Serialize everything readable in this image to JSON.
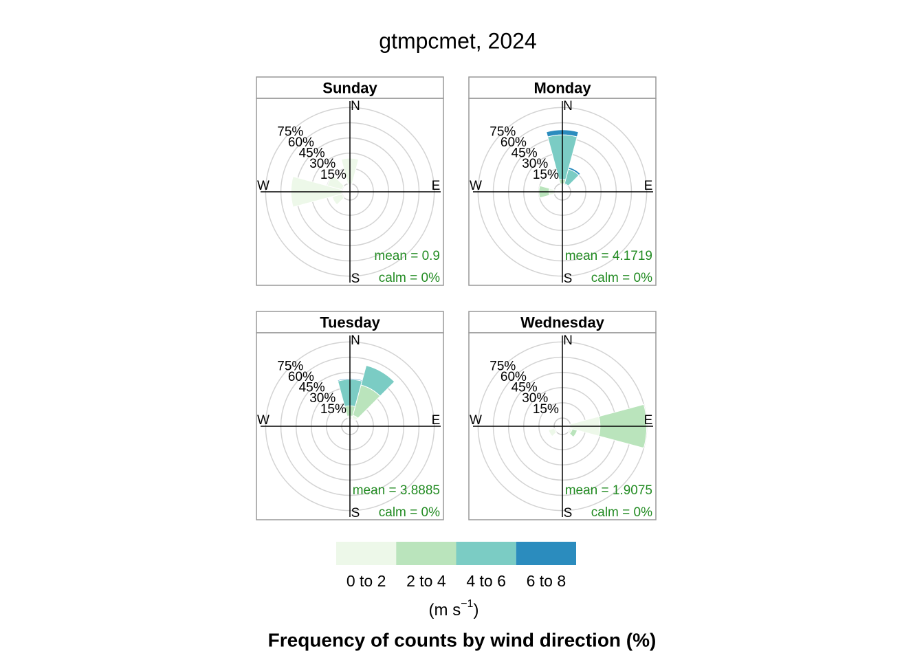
{
  "chart_data": {
    "type": "windrose",
    "title": "gtmpcmet, 2024",
    "caption": "Frequency of counts by wind direction (%)",
    "legend_unit": [
      "(m s",
      "−1",
      ")"
    ],
    "compass": [
      "N",
      "E",
      "S",
      "W"
    ],
    "directions": [
      0,
      30,
      60,
      90,
      120,
      150,
      180,
      210,
      240,
      270,
      300,
      330
    ],
    "rlim": [
      0,
      80
    ],
    "rticks": [
      {
        "value": 15,
        "label": "15%"
      },
      {
        "value": 30,
        "label": "30%"
      },
      {
        "value": 45,
        "label": "45%"
      },
      {
        "value": 60,
        "label": "60%"
      },
      {
        "value": 75,
        "label": "75%"
      }
    ],
    "series": [
      {
        "name": "0 to 2",
        "color": "#edf8e9"
      },
      {
        "name": "2 to 4",
        "color": "#bae4bc"
      },
      {
        "name": "4 to 6",
        "color": "#7bccc4"
      },
      {
        "name": "6 to 8",
        "color": "#2b8cbe"
      }
    ],
    "panels": [
      {
        "name": "Sunday",
        "mean_label": "mean = 0.9",
        "calm_label": "calm = 0%",
        "values": [
          [
            25,
            0,
            0,
            0,
            0,
            0,
            0,
            0,
            10,
            50,
            15,
            0
          ],
          [
            0,
            0,
            0,
            0,
            0,
            0,
            0,
            0,
            0,
            0,
            0,
            0
          ],
          [
            0,
            0,
            0,
            0,
            0,
            0,
            0,
            0,
            0,
            0,
            0,
            0
          ],
          [
            0,
            0,
            0,
            0,
            0,
            0,
            0,
            0,
            0,
            0,
            0,
            0
          ]
        ]
      },
      {
        "name": "Monday",
        "mean_label": "mean = 4.1719",
        "calm_label": "calm = 0%",
        "values": [
          [
            0,
            0,
            0,
            0,
            0,
            0,
            0,
            0,
            0,
            5,
            0,
            0
          ],
          [
            4,
            0,
            0,
            0,
            0,
            0,
            0,
            0,
            0,
            10,
            0,
            0
          ],
          [
            44,
            15,
            0,
            0,
            0,
            0,
            0,
            0,
            0,
            0,
            0,
            0
          ],
          [
            5,
            2,
            0,
            0,
            0,
            0,
            0,
            0,
            0,
            0,
            0,
            0
          ]
        ]
      },
      {
        "name": "Tuesday",
        "mean_label": "mean = 3.8885",
        "calm_label": "calm = 0%",
        "values": [
          [
            2,
            3,
            0,
            0,
            0,
            0,
            0,
            0,
            0,
            0,
            0,
            0
          ],
          [
            10,
            31,
            0,
            0,
            0,
            0,
            0,
            0,
            0,
            0,
            0,
            0
          ],
          [
            26,
            20,
            0,
            0,
            0,
            0,
            0,
            0,
            0,
            0,
            0,
            0
          ],
          [
            1,
            0,
            0,
            0,
            0,
            0,
            0,
            0,
            0,
            0,
            0,
            0
          ]
        ]
      },
      {
        "name": "Wednesday",
        "mean_label": "mean = 1.9075",
        "calm_label": "calm = 0%",
        "values": [
          [
            0,
            0,
            0,
            29,
            2,
            0,
            0,
            0,
            6,
            0,
            0,
            0
          ],
          [
            0,
            0,
            0,
            46,
            5,
            0,
            0,
            0,
            0,
            0,
            0,
            0
          ],
          [
            0,
            0,
            0,
            0,
            0,
            0,
            0,
            0,
            0,
            0,
            0,
            0
          ],
          [
            0,
            0,
            0,
            0,
            0,
            0,
            0,
            0,
            0,
            0,
            0,
            0
          ]
        ]
      }
    ]
  }
}
